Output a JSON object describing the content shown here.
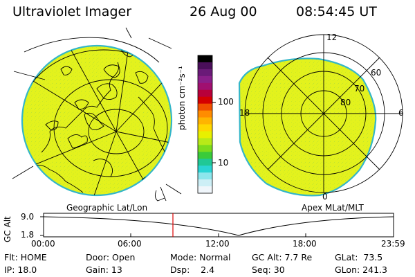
{
  "header": {
    "instrument": "Ultraviolet Imager",
    "date": "26 Aug 00",
    "time": "08:54:45 UT"
  },
  "colorbar": {
    "unit_label": "photon cm⁻²s⁻¹",
    "ticks": [
      "100",
      "10"
    ],
    "colors": [
      "#000000",
      "#4a0f5a",
      "#6a1a78",
      "#8a1f8a",
      "#a01070",
      "#b8003a",
      "#d40000",
      "#f05000",
      "#ff8c00",
      "#ffb400",
      "#ffd700",
      "#e8f000",
      "#b8ea18",
      "#7cdc1c",
      "#3acb3a",
      "#20c896",
      "#2ad4d4",
      "#8ce6ec",
      "#cdeff6",
      "#f0f6fb"
    ]
  },
  "left_panel": {
    "caption": "Geographic Lat/Lon",
    "fill_color": "#e3f21d"
  },
  "right_panel": {
    "caption": "Apex MLat/MLT",
    "fill_color": "#e3f21d",
    "mlt_labels": [
      "12",
      "18",
      "6",
      "0"
    ],
    "lat_labels": [
      "60",
      "70",
      "80"
    ]
  },
  "altitude_plot": {
    "ylabel": "GC Alt",
    "ytick_top": "9.0",
    "ytick_bottom": "1.8",
    "x_ticks": [
      "00:00",
      "06:00",
      "12:00",
      "18:00",
      "23:59"
    ],
    "current_marker_color": "#dd0000"
  },
  "status": {
    "row1": {
      "flt": "Flt: HOME",
      "door": "Door: Open",
      "mode": "Mode: Normal",
      "gc_alt": "GC Alt: 7.7 Re",
      "glat": "GLat:  73.5"
    },
    "row2": {
      "ip": "IP: 18.0",
      "gain": "Gain: 13",
      "dsp": "Dsp:    2.4",
      "seq": "Seq: 30",
      "glon": "GLon: 241.3"
    }
  }
}
